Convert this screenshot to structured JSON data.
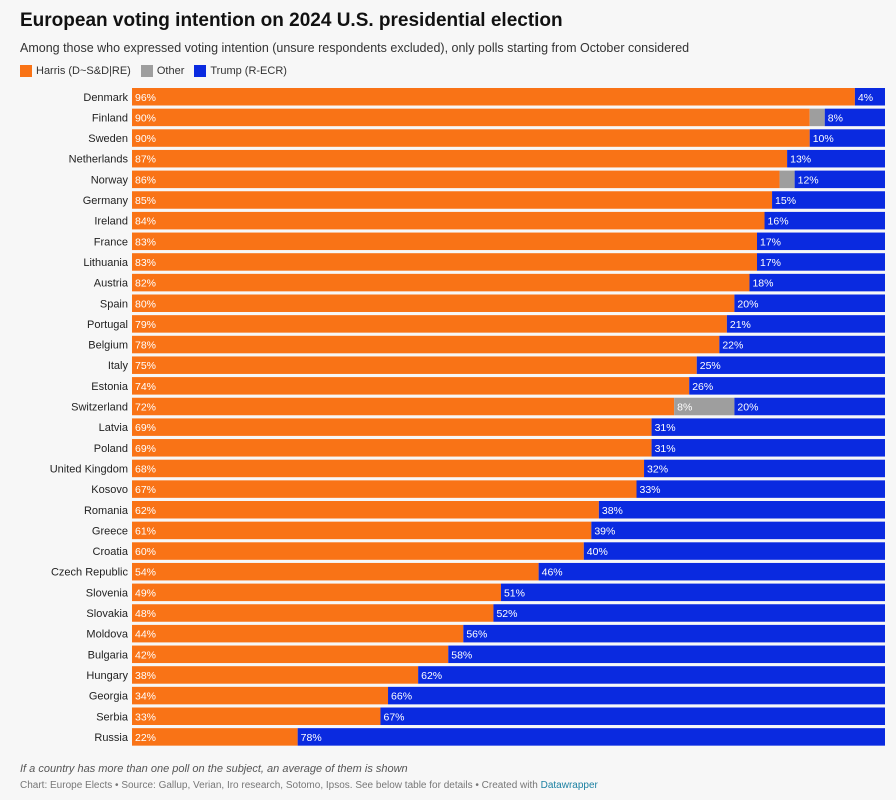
{
  "header": {
    "title": "European voting intention on 2024 U.S. presidential election",
    "subtitle": "Among those who expressed voting intention (unsure respondents excluded), only polls starting from October considered"
  },
  "legend": [
    {
      "label": "Harris (D~S&D|RE)",
      "color": "#f97316"
    },
    {
      "label": "Other",
      "color": "#9e9e9e"
    },
    {
      "label": "Trump (R-ECR)",
      "color": "#0a2ae0"
    }
  ],
  "footer": {
    "note": "If a country has more than one poll on the subject, an average of them is shown",
    "source_prefix": "Chart: Europe Elects • Source: Gallup, Verian, Iro research, Sotomo, Ipsos. See below table for details • Created with ",
    "source_link": "Datawrapper"
  },
  "chart_data": {
    "type": "bar",
    "orientation": "horizontal",
    "stacked": true,
    "unit": "%",
    "xlim": [
      0,
      100
    ],
    "categories": [
      "Denmark",
      "Finland",
      "Sweden",
      "Netherlands",
      "Norway",
      "Germany",
      "Ireland",
      "France",
      "Lithuania",
      "Austria",
      "Spain",
      "Portugal",
      "Belgium",
      "Italy",
      "Estonia",
      "Switzerland",
      "Latvia",
      "Poland",
      "United Kingdom",
      "Kosovo",
      "Romania",
      "Greece",
      "Croatia",
      "Czech Republic",
      "Slovenia",
      "Slovakia",
      "Moldova",
      "Bulgaria",
      "Hungary",
      "Georgia",
      "Serbia",
      "Russia"
    ],
    "series": [
      {
        "name": "Harris (D~S&D|RE)",
        "color": "#f97316",
        "values": [
          96,
          90,
          90,
          87,
          86,
          85,
          84,
          83,
          83,
          82,
          80,
          79,
          78,
          75,
          74,
          72,
          69,
          69,
          68,
          67,
          62,
          61,
          60,
          54,
          49,
          48,
          44,
          42,
          38,
          34,
          33,
          22
        ]
      },
      {
        "name": "Other",
        "color": "#9e9e9e",
        "values": [
          0,
          2,
          0,
          0,
          2,
          0,
          0,
          0,
          0,
          0,
          0,
          0,
          0,
          0,
          0,
          8,
          0,
          0,
          0,
          0,
          0,
          0,
          0,
          0,
          0,
          0,
          0,
          0,
          0,
          0,
          0,
          0
        ]
      },
      {
        "name": "Trump (R-ECR)",
        "color": "#0a2ae0",
        "values": [
          4,
          8,
          10,
          13,
          12,
          15,
          16,
          17,
          17,
          18,
          20,
          21,
          22,
          25,
          26,
          20,
          31,
          31,
          32,
          33,
          38,
          39,
          40,
          46,
          51,
          52,
          56,
          58,
          62,
          66,
          67,
          78
        ]
      }
    ],
    "value_labels": {
      "Harris (D~S&D|RE)": [
        "96%",
        "90%",
        "90%",
        "87%",
        "86%",
        "85%",
        "84%",
        "83%",
        "83%",
        "82%",
        "80%",
        "79%",
        "78%",
        "75%",
        "74%",
        "72%",
        "69%",
        "69%",
        "68%",
        "67%",
        "62%",
        "61%",
        "60%",
        "54%",
        "49%",
        "48%",
        "44%",
        "42%",
        "38%",
        "34%",
        "33%",
        "22%"
      ],
      "Other": [
        "",
        "",
        "",
        "",
        "",
        "",
        "",
        "",
        "",
        "",
        "",
        "",
        "",
        "",
        "",
        "8%",
        "",
        "",
        "",
        "",
        "",
        "",
        "",
        "",
        "",
        "",
        "",
        "",
        "",
        "",
        "",
        ""
      ],
      "Trump (R-ECR)": [
        "4%",
        "8%",
        "10%",
        "13%",
        "12%",
        "15%",
        "16%",
        "17%",
        "17%",
        "18%",
        "20%",
        "21%",
        "22%",
        "25%",
        "26%",
        "20%",
        "31%",
        "31%",
        "32%",
        "33%",
        "38%",
        "39%",
        "40%",
        "46%",
        "51%",
        "52%",
        "56%",
        "58%",
        "62%",
        "66%",
        "67%",
        "78%"
      ]
    }
  }
}
